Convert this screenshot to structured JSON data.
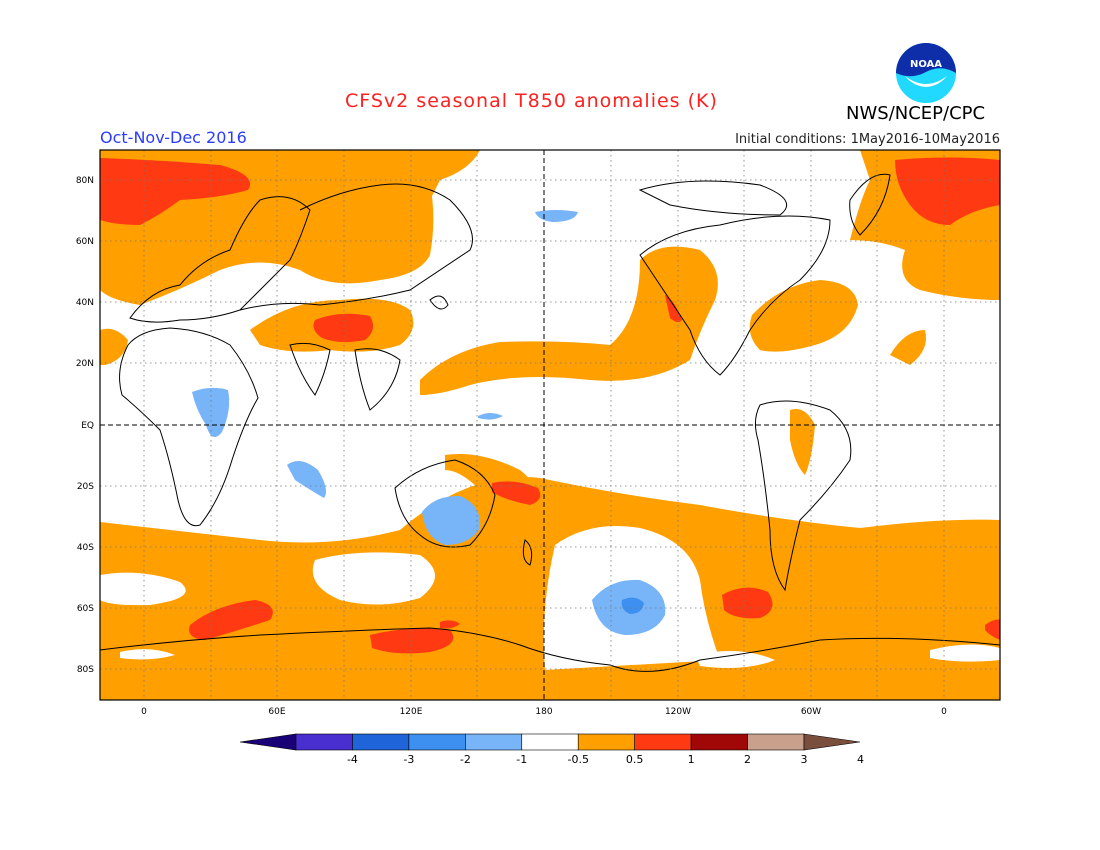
{
  "title": "CFSv2 seasonal T850 anomalies (K)",
  "season": "Oct-Nov-Dec 2016",
  "initial_conditions": "Initial conditions: 1May2016-10May2016",
  "agency": "NWS/NCEP/CPC",
  "logo_text": "NOAA",
  "map": {
    "projection": "cylindrical equidistant, centered 180",
    "lat_ticks": [
      "80N",
      "60N",
      "40N",
      "20N",
      "EQ",
      "20S",
      "40S",
      "60S",
      "80S"
    ],
    "lon_ticks": [
      "0",
      "60E",
      "120E",
      "180",
      "120W",
      "60W",
      "0"
    ],
    "grid": "dotted, 20 degree; dashed equator and dateline"
  },
  "colorbar": {
    "labels": [
      "-4",
      "-3",
      "-2",
      "-1",
      "-0.5",
      "0.5",
      "1",
      "2",
      "3",
      "4"
    ],
    "colors": [
      "#1a0077",
      "#4a2fd0",
      "#1f64d8",
      "#3d8ff0",
      "#78b4f8",
      "#ffffff",
      "#ff9f00",
      "#ff3a12",
      "#a00808",
      "#c8a08c",
      "#7a4e3c"
    ]
  }
}
